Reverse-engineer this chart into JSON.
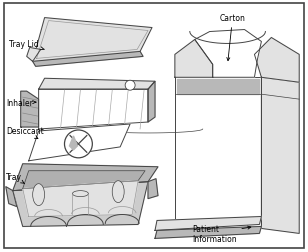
{
  "figure_bg": "#ffffff",
  "border_color": "#333333",
  "labels": {
    "tray_lid": "Tray Lid",
    "inhaler": "Inhaler",
    "desiccant": "Desiccant",
    "tray": "Tray",
    "carton": "Carton",
    "patient_info": "Patient\nInformation"
  },
  "figsize": [
    3.08,
    2.53
  ],
  "dpi": 100,
  "lc": "#444444",
  "gray_fill": "#cccccc",
  "light_gray": "#e2e2e2",
  "mid_gray": "#b8b8b8"
}
